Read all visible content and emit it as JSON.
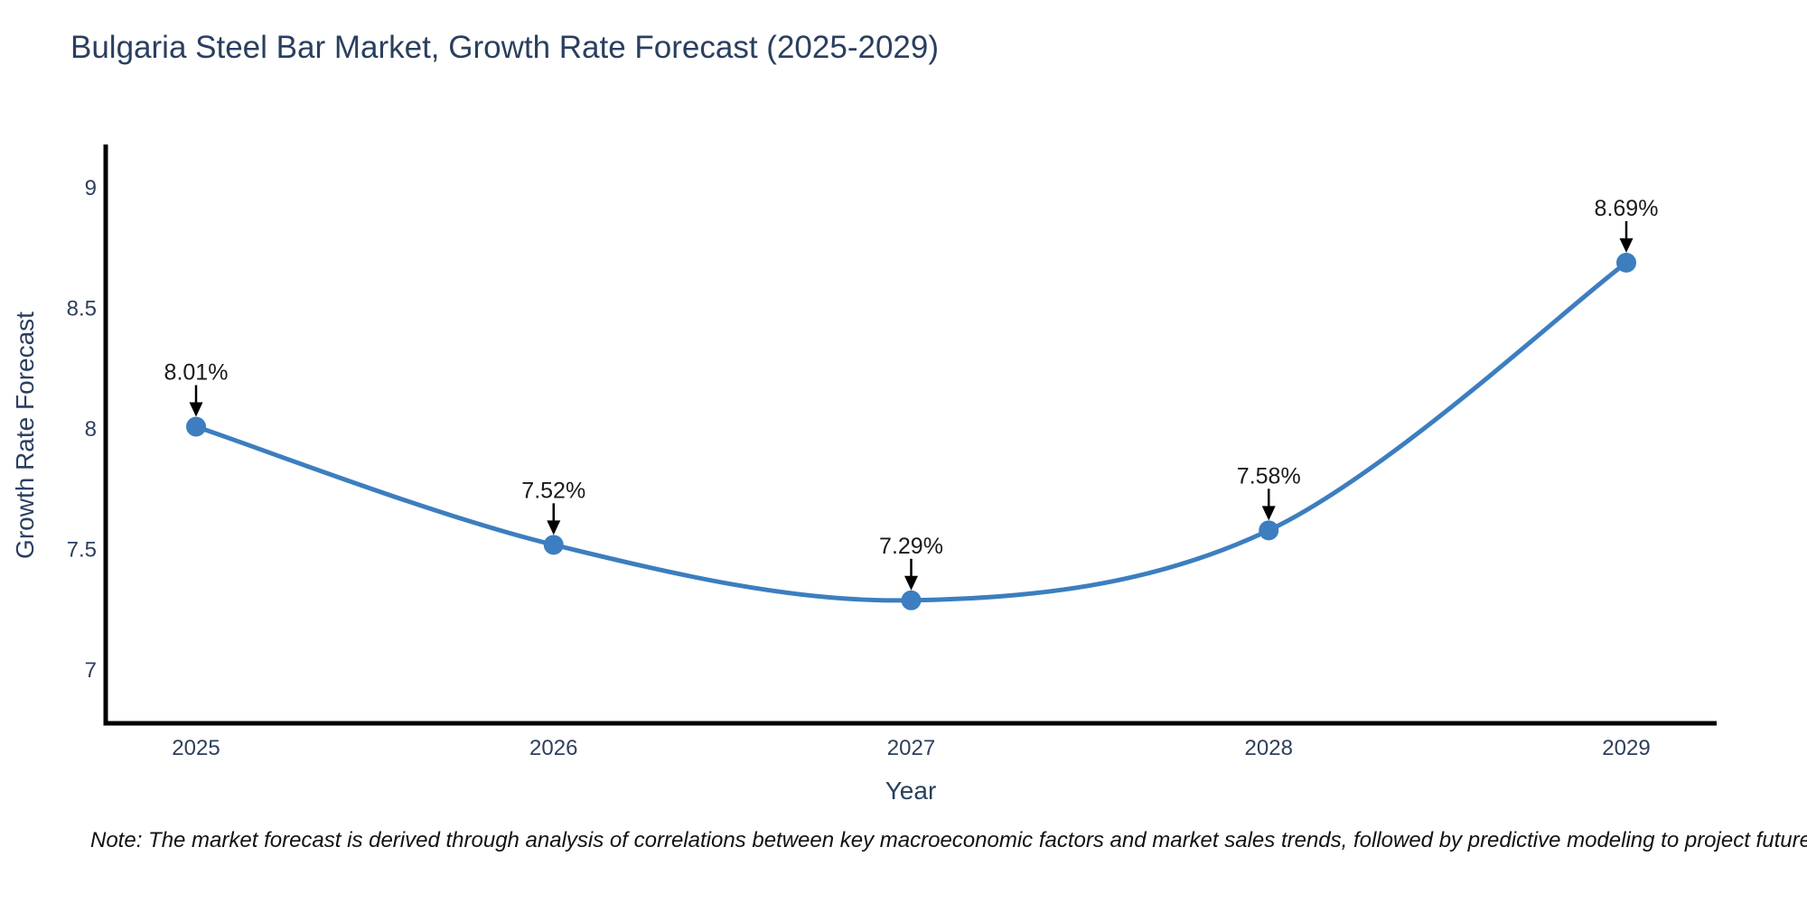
{
  "page": {
    "title": "Bulgaria Steel Bar Market, Growth Rate Forecast (2025-2029)",
    "note": "Note: The market forecast is derived through analysis of correlations between key macroeconomic factors and market sales trends, followed by predictive modeling to project future sales"
  },
  "chart_data": {
    "type": "line",
    "title": "Bulgaria Steel Bar Market, Growth Rate Forecast (2025-2029)",
    "xlabel": "Year",
    "ylabel": "Growth Rate Forecast",
    "categories": [
      "2025",
      "2026",
      "2027",
      "2028",
      "2029"
    ],
    "series": [
      {
        "name": "Growth Rate Forecast",
        "values": [
          8.01,
          7.52,
          7.29,
          7.58,
          8.69
        ],
        "point_labels": [
          "8.01%",
          "7.52%",
          "7.29%",
          "7.58%",
          "8.69%"
        ]
      }
    ],
    "ylim": [
      6.78,
      9.18
    ],
    "yticks": [
      7,
      7.5,
      8,
      8.5,
      9
    ],
    "ytick_labels": [
      "7",
      "7.5",
      "8",
      "8.5",
      "9"
    ],
    "grid": false,
    "legend_position": "none",
    "curve": "smooth-spline",
    "annotations": "value labels with downward black arrows above each point",
    "colors": {
      "line": "#3c7ebf",
      "marker": "#3c7ebf",
      "axis": "#000000",
      "tick_label": "#2e3f5c",
      "axis_title": "#2a3f5f",
      "annotation_text": "#1a1a1a",
      "title": "#2a3f5f",
      "background": "#ffffff"
    }
  }
}
